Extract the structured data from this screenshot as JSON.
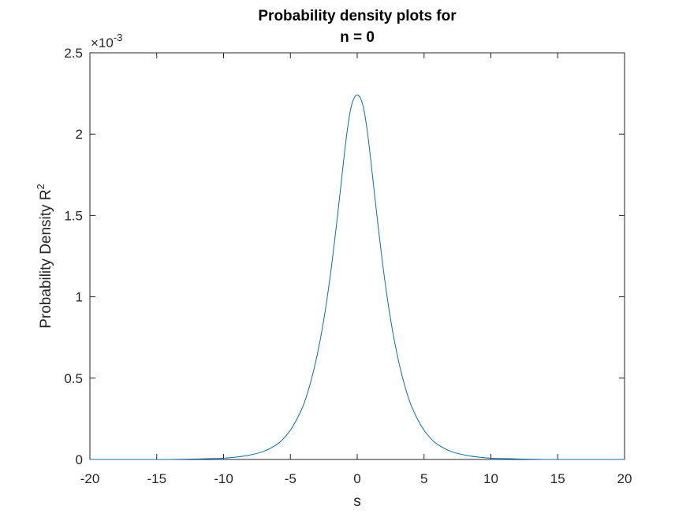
{
  "chart_data": {
    "type": "line",
    "title_lines": [
      "Probability density plots for",
      "n = 0"
    ],
    "xlabel": "s",
    "ylabel_base": "Probability Density R",
    "ylabel_sup": "2",
    "y_multiplier_base": "×10",
    "y_multiplier_exp": "-3",
    "xlim": [
      -20,
      20
    ],
    "ylim": [
      0,
      2.5
    ],
    "x_ticks": [
      -20,
      -15,
      -10,
      -5,
      0,
      5,
      10,
      15,
      20
    ],
    "x_tick_labels": [
      "-20",
      "-15",
      "-10",
      "-5",
      "0",
      "5",
      "10",
      "15",
      "20"
    ],
    "y_ticks": [
      0,
      0.5,
      1,
      1.5,
      2,
      2.5
    ],
    "y_tick_labels": [
      "0",
      "0.5",
      "1",
      "1.5",
      "2",
      "2.5"
    ],
    "grid": false,
    "series": [
      {
        "color": "#0072bd",
        "x": [
          -20,
          -18,
          -16,
          -14,
          -12,
          -10,
          -9,
          -8,
          -7,
          -6,
          -5.5,
          -5,
          -4.5,
          -4,
          -3.5,
          -3,
          -2.5,
          -2,
          -1.5,
          -1,
          -0.75,
          -0.5,
          -0.25,
          0,
          0.25,
          0.5,
          0.75,
          1,
          1.5,
          2,
          2.5,
          3,
          3.5,
          4,
          4.5,
          5,
          5.5,
          6,
          7,
          8,
          9,
          10,
          12,
          14,
          16,
          18,
          20
        ],
        "y": [
          0.0,
          0.0,
          0.0,
          0.0,
          0.003,
          0.008,
          0.015,
          0.028,
          0.05,
          0.093,
          0.13,
          0.18,
          0.25,
          0.34,
          0.47,
          0.64,
          0.86,
          1.14,
          1.48,
          1.85,
          2.02,
          2.15,
          2.22,
          2.24,
          2.22,
          2.15,
          2.02,
          1.85,
          1.48,
          1.14,
          0.86,
          0.64,
          0.47,
          0.34,
          0.25,
          0.18,
          0.13,
          0.093,
          0.05,
          0.028,
          0.015,
          0.008,
          0.003,
          0.0,
          0.0,
          0.0,
          0.0
        ]
      }
    ]
  }
}
